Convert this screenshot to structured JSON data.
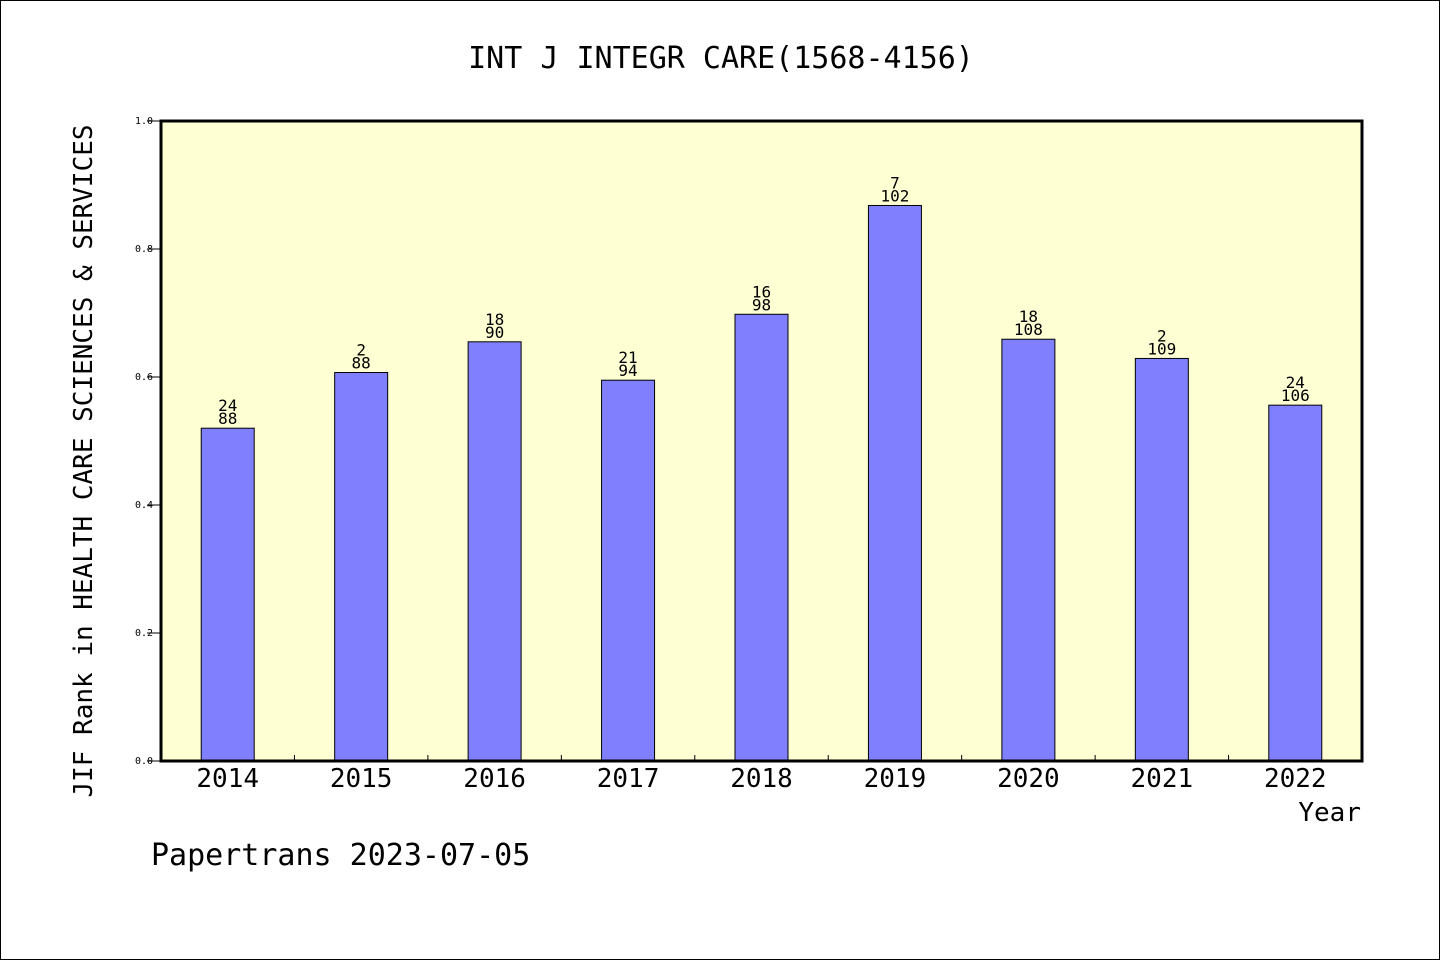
{
  "chart_data": {
    "type": "bar",
    "title": "INT J INTEGR CARE(1568-4156)",
    "xlabel": "Year",
    "ylabel": "JIF Rank in HEALTH CARE SCIENCES & SERVICES",
    "footer": "Papertrans 2023-07-05",
    "ylim": [
      0,
      1.0
    ],
    "y_ticks": [
      "0.0",
      "0.2",
      "0.4",
      "0.6",
      "0.8",
      "1.0"
    ],
    "y_tick_values": [
      0,
      0.2,
      0.4,
      0.6,
      0.8,
      1.0
    ],
    "categories": [
      "2014",
      "2015",
      "2016",
      "2017",
      "2018",
      "2019",
      "2020",
      "2021",
      "2022"
    ],
    "values": [
      0.52,
      0.607,
      0.655,
      0.595,
      0.698,
      0.868,
      0.659,
      0.629,
      0.556
    ],
    "rank_labels": [
      "24",
      "2",
      "18",
      "21",
      "16",
      "7",
      "18",
      "2",
      "24"
    ],
    "total_labels": [
      "88",
      "88",
      "90",
      "94",
      "98",
      "102",
      "108",
      "109",
      "106"
    ],
    "grid": false,
    "legend": "none",
    "colors": {
      "plot_background": "#ffffd4",
      "bar_fill": "#8080ff",
      "bar_stroke": "#000000",
      "axis": "#000000"
    }
  }
}
